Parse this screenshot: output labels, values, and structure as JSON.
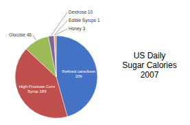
{
  "chart_data": {
    "type": "pie",
    "title": "US Daily\nSugar Calories\n2007",
    "categories": [
      "Refined cane/beet\n209",
      "High-Fructose Corn\nSyrup 189",
      "Glucose 46",
      "Dextrose 10",
      "Edible Syrups 1",
      "Honey 3"
    ],
    "values": [
      209,
      189,
      46,
      10,
      1,
      3
    ],
    "colors": [
      "#4472C4",
      "#C0504D",
      "#9BBB59",
      "#8064A2",
      "#9BBB59",
      "#F79646"
    ]
  }
}
